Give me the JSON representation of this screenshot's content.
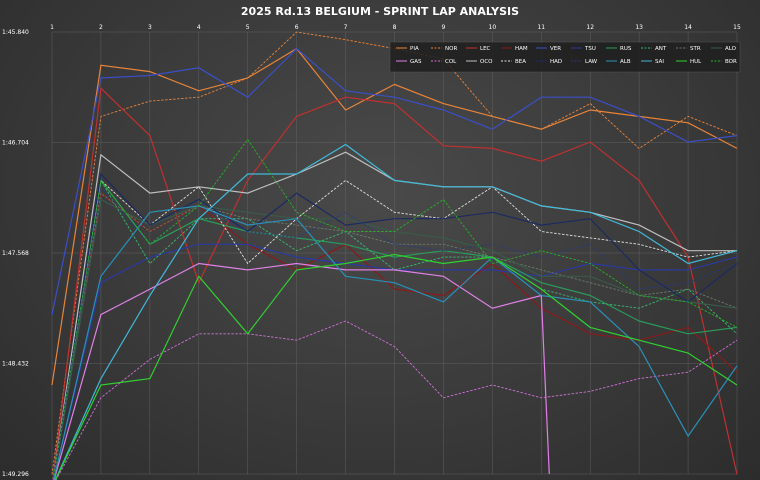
{
  "chart_data": {
    "type": "line",
    "title": "2025 Rd.13 BELGIUM - SPRINT LAP ANALYSIS",
    "xlabel": "",
    "ylabel": "",
    "x": [
      1,
      2,
      3,
      4,
      5,
      6,
      7,
      8,
      9,
      10,
      11,
      12,
      13,
      14,
      15
    ],
    "x_ticks": [
      "1",
      "2",
      "3",
      "4",
      "5",
      "6",
      "7",
      "8",
      "9",
      "10",
      "11",
      "12",
      "13",
      "14",
      "15"
    ],
    "y_ticks": [
      {
        "value": 105.84,
        "label": "1:45.840"
      },
      {
        "value": 106.704,
        "label": "1:46.704"
      },
      {
        "value": 107.568,
        "label": "1:47.568"
      },
      {
        "value": 108.432,
        "label": "1:48.432"
      },
      {
        "value": 109.296,
        "label": "1:49.296"
      }
    ],
    "ylim_top": 105.84,
    "ylim_bottom": 109.296,
    "y_inverted": true,
    "grid": true,
    "legend_position": "top-right",
    "series": [
      {
        "name": "PIA",
        "color": "#e8843a",
        "dash": "solid",
        "values": [
          108.6,
          106.1,
          106.15,
          106.3,
          106.2,
          105.97,
          106.45,
          106.25,
          106.4,
          106.5,
          106.6,
          106.45,
          106.5,
          106.55,
          106.75
        ]
      },
      {
        "name": "NOR",
        "color": "#e8843a",
        "dash": "dash",
        "values": [
          109.3,
          106.5,
          106.38,
          106.35,
          106.2,
          105.84,
          105.9,
          105.97,
          106.05,
          106.5,
          106.6,
          106.4,
          106.75,
          106.5,
          106.65
        ]
      },
      {
        "name": "LEC",
        "color": "#c03030",
        "dash": "solid",
        "values": [
          109.4,
          106.28,
          106.65,
          107.8,
          107.0,
          106.5,
          106.35,
          106.4,
          106.73,
          106.75,
          106.85,
          106.7,
          107.0,
          107.6,
          109.3
        ]
      },
      {
        "name": "HAM",
        "color": "#8b1a1a",
        "dash": "solid",
        "values": [
          109.4,
          107.1,
          107.4,
          107.2,
          107.5,
          107.7,
          107.5,
          107.85,
          107.9,
          107.65,
          108.0,
          108.2,
          108.25,
          108.15,
          108.5
        ]
      },
      {
        "name": "VER",
        "color": "#3a4fc8",
        "dash": "solid",
        "values": [
          108.05,
          106.2,
          106.18,
          106.12,
          106.35,
          105.97,
          106.3,
          106.35,
          106.45,
          106.6,
          106.35,
          106.35,
          106.5,
          106.7,
          106.65
        ]
      },
      {
        "name": "TSU",
        "color": "#2a3aa0",
        "dash": "solid",
        "values": [
          109.4,
          107.8,
          107.6,
          107.5,
          107.5,
          107.6,
          107.65,
          107.7,
          107.7,
          107.7,
          107.75,
          107.65,
          107.7,
          107.7,
          107.6
        ]
      },
      {
        "name": "RUS",
        "color": "#2a9a5a",
        "dash": "solid",
        "values": [
          109.4,
          107.0,
          107.5,
          107.3,
          107.4,
          107.45,
          107.5,
          107.6,
          107.55,
          107.6,
          107.8,
          107.9,
          108.1,
          108.2,
          108.15
        ]
      },
      {
        "name": "ANT",
        "color": "#3ab870",
        "dash": "dash",
        "values": [
          109.4,
          107.0,
          107.65,
          107.3,
          107.3,
          107.55,
          107.4,
          107.7,
          107.6,
          107.6,
          107.85,
          107.95,
          108.0,
          107.85,
          108.2
        ]
      },
      {
        "name": "STR",
        "color": "#6a7a6a",
        "dash": "dash",
        "values": [
          109.4,
          107.1,
          107.4,
          107.2,
          107.3,
          107.35,
          107.4,
          107.5,
          107.5,
          107.6,
          107.7,
          107.8,
          107.9,
          107.85,
          108.0
        ]
      },
      {
        "name": "ALO",
        "color": "#3a5a4a",
        "dash": "solid",
        "values": [
          109.4,
          107.15,
          107.35,
          107.2,
          107.25,
          107.3,
          107.3,
          107.4,
          107.45,
          107.55,
          107.75,
          107.75,
          107.9,
          107.95,
          108.0
        ]
      },
      {
        "name": "GAS",
        "color": "#e080e8",
        "dash": "solid",
        "values": [
          109.4,
          108.05,
          107.85,
          107.65,
          107.7,
          107.65,
          107.7,
          107.7,
          107.75,
          108.0,
          107.9,
          null,
          null,
          null,
          null
        ]
      },
      {
        "name": "COL",
        "color": "#d070d8",
        "dash": "dash",
        "values": [
          109.4,
          108.7,
          108.4,
          108.2,
          108.2,
          108.25,
          108.1,
          108.3,
          108.7,
          108.6,
          108.7,
          108.65,
          108.55,
          108.5,
          108.25
        ]
      },
      {
        "name": "OCO",
        "color": "#bfbfbf",
        "dash": "solid",
        "values": [
          109.4,
          106.8,
          107.1,
          107.05,
          107.1,
          106.95,
          106.78,
          107.0,
          107.05,
          107.05,
          107.2,
          107.25,
          107.35,
          107.55,
          107.55
        ]
      },
      {
        "name": "BEA",
        "color": "#e0e0e0",
        "dash": "dash",
        "values": [
          109.4,
          107.0,
          107.35,
          107.05,
          107.65,
          107.3,
          107.0,
          107.25,
          107.3,
          107.05,
          107.4,
          107.45,
          107.5,
          107.6,
          107.55
        ]
      },
      {
        "name": "HAD",
        "color": "#1c2a60",
        "dash": "solid",
        "values": [
          109.4,
          106.95,
          107.35,
          107.15,
          107.4,
          107.1,
          107.35,
          107.3,
          107.3,
          107.25,
          107.35,
          107.3,
          107.7,
          107.95,
          107.65
        ]
      },
      {
        "name": "LAW",
        "color": "#2a3a7a",
        "dash": "dash",
        "values": [
          109.4,
          107.05,
          107.5,
          107.2,
          107.4,
          107.45,
          107.25,
          107.5,
          107.55,
          107.5,
          107.6,
          107.5,
          107.85,
          107.8,
          107.65
        ]
      },
      {
        "name": "ALB",
        "color": "#2a90b8",
        "dash": "solid",
        "values": [
          109.4,
          107.75,
          107.25,
          107.2,
          107.35,
          107.3,
          107.75,
          107.8,
          107.95,
          107.6,
          107.9,
          107.95,
          108.3,
          109.0,
          108.45
        ]
      },
      {
        "name": "SAI",
        "color": "#40b8d8",
        "dash": "solid",
        "values": [
          109.4,
          108.55,
          107.9,
          107.3,
          106.95,
          106.95,
          106.72,
          107.0,
          107.05,
          107.05,
          107.2,
          107.25,
          107.4,
          107.65,
          107.55
        ]
      },
      {
        "name": "HUL",
        "color": "#30d030",
        "dash": "solid",
        "values": [
          109.4,
          108.6,
          108.55,
          107.75,
          108.2,
          107.7,
          107.65,
          107.58,
          107.65,
          107.6,
          107.85,
          108.15,
          108.25,
          108.35,
          108.6
        ]
      },
      {
        "name": "BOR",
        "color": "#28b028",
        "dash": "dash",
        "values": [
          109.4,
          107.0,
          107.5,
          107.2,
          106.68,
          107.25,
          107.4,
          107.4,
          107.15,
          107.65,
          107.55,
          107.65,
          107.9,
          107.95,
          108.15
        ]
      }
    ]
  }
}
